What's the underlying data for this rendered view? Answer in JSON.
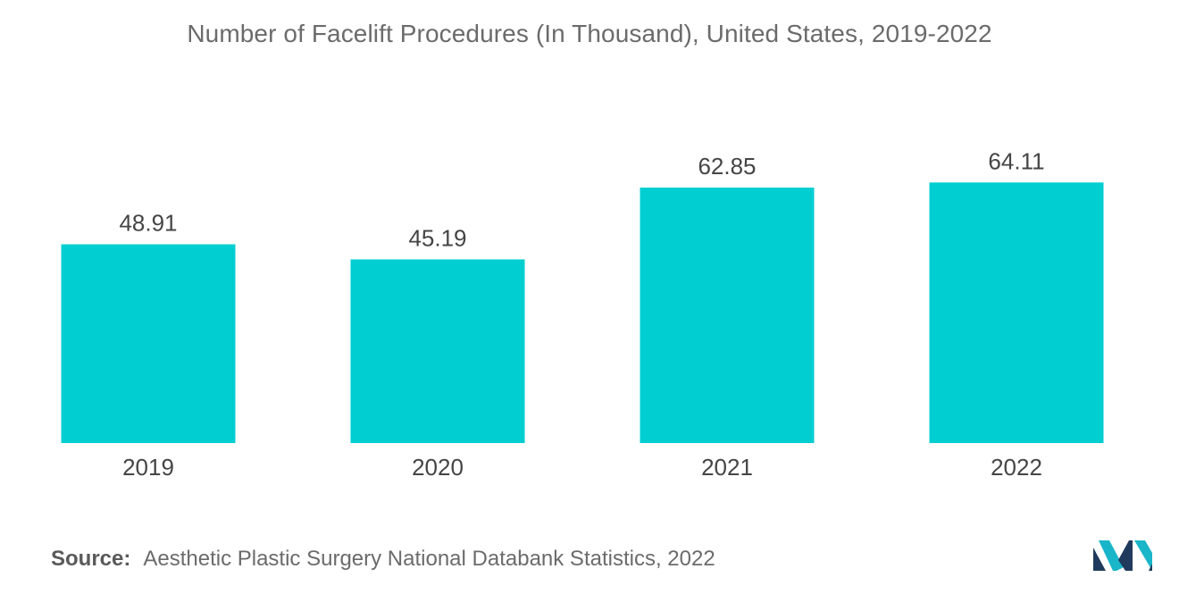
{
  "chart_data": {
    "type": "bar",
    "title": "Number of Facelift Procedures (In Thousand), United States, 2019-2022",
    "categories": [
      "2019",
      "2020",
      "2021",
      "2022"
    ],
    "values": [
      48.91,
      45.19,
      62.85,
      64.11
    ],
    "value_labels": [
      "48.91",
      "45.19",
      "62.85",
      "64.11"
    ],
    "xlabel": "",
    "ylabel": "",
    "ylim": [
      0,
      70
    ],
    "grid": false,
    "legend": "none",
    "bar_color": "#00CED1"
  },
  "source": {
    "prefix": "Source:",
    "text": "Aesthetic Plastic Surgery National Databank Statistics, 2022"
  },
  "logo": {
    "icon": "mordor-intelligence-logo-icon",
    "colors": [
      "#1F3A5C",
      "#19B5C9"
    ]
  }
}
